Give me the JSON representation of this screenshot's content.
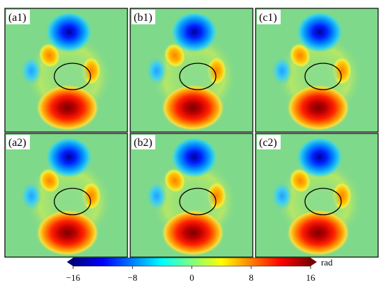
{
  "panels": [
    {
      "label": "(a1)"
    },
    {
      "label": "(b1)"
    },
    {
      "label": "(c1)"
    },
    {
      "label": "(a2)"
    },
    {
      "label": "(b2)"
    },
    {
      "label": "(c2)"
    }
  ],
  "colorbar": {
    "ticks": [
      "−16",
      "−8",
      "0",
      "8",
      "16"
    ],
    "unit": "rad",
    "range": [
      -16,
      16
    ],
    "colors": [
      "#00007f",
      "#0000ff",
      "#007fff",
      "#00ffff",
      "#7fff7f",
      "#ffff00",
      "#ff7f00",
      "#ff0000",
      "#7f0000"
    ]
  },
  "field_colors": {
    "background": "#7fd98a"
  }
}
